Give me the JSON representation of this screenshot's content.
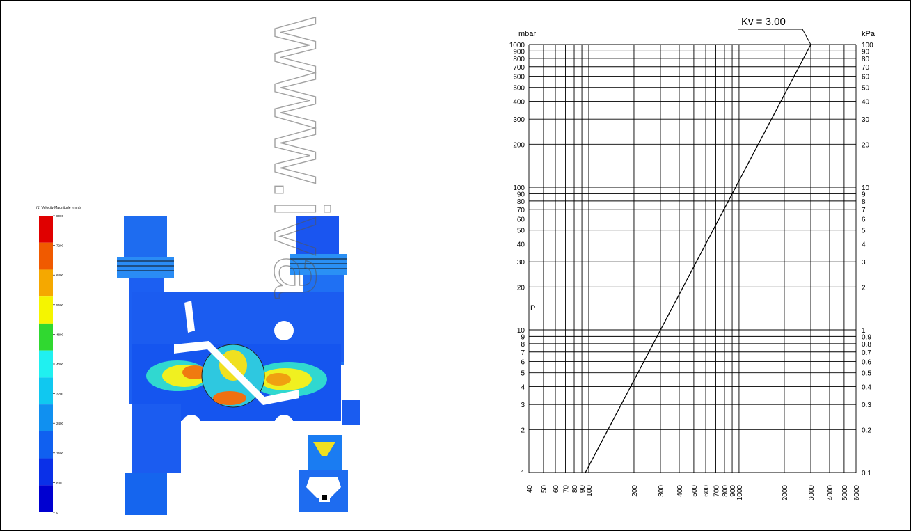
{
  "cfd_figure": {
    "legend_title": "(1) Velocity Magnitude -mm/s",
    "legend_ticks": [
      "8000",
      "7200",
      "6400",
      "5600",
      "4800",
      "4000",
      "3200",
      "2400",
      "1600",
      "800",
      "0"
    ],
    "legend_colors": [
      "#e00000",
      "#f05a00",
      "#f5a800",
      "#f5f500",
      "#30d830",
      "#20f0f0",
      "#10c8f0",
      "#1090f0",
      "#1060f0",
      "#0a30e8",
      "#0000d0"
    ]
  },
  "watermark": "www.iva",
  "chart_data": {
    "type": "line",
    "title": "",
    "annotation": "Kv = 3.00",
    "xscale": "log",
    "yscale": "log",
    "xlim": [
      40,
      6000
    ],
    "ylim": [
      1,
      1000
    ],
    "x_ticks": [
      "40",
      "50",
      "60",
      "70",
      "80",
      "90",
      "100",
      "200",
      "300",
      "400",
      "500",
      "600",
      "700",
      "800",
      "900",
      "1000",
      "2000",
      "3000",
      "4000",
      "5000",
      "6000"
    ],
    "y_left_unit": "mbar",
    "y_left_ticks": [
      "1",
      "2",
      "3",
      "4",
      "5",
      "6",
      "7",
      "8",
      "9",
      "10",
      "20",
      "30",
      "40",
      "50",
      "60",
      "70",
      "80",
      "90",
      "100",
      "200",
      "300",
      "400",
      "500",
      "600",
      "700",
      "800",
      "900",
      "1000"
    ],
    "y_right_unit": "kPa",
    "y_right_ticks": [
      "0.1",
      "0.2",
      "0.3",
      "0.4",
      "0.5",
      "0.6",
      "0.7",
      "0.8",
      "0.9",
      "1",
      "2",
      "3",
      "4",
      "5",
      "6",
      "7",
      "8",
      "9",
      "10",
      "20",
      "30",
      "40",
      "50",
      "60",
      "70",
      "80",
      "90",
      "100"
    ],
    "y_axis_label": "P",
    "grid": true,
    "series": [
      {
        "x": [
          95,
          3000
        ],
        "y": [
          1,
          1000
        ]
      }
    ],
    "colors": {
      "line": "#000000",
      "grid": "#000000"
    }
  }
}
